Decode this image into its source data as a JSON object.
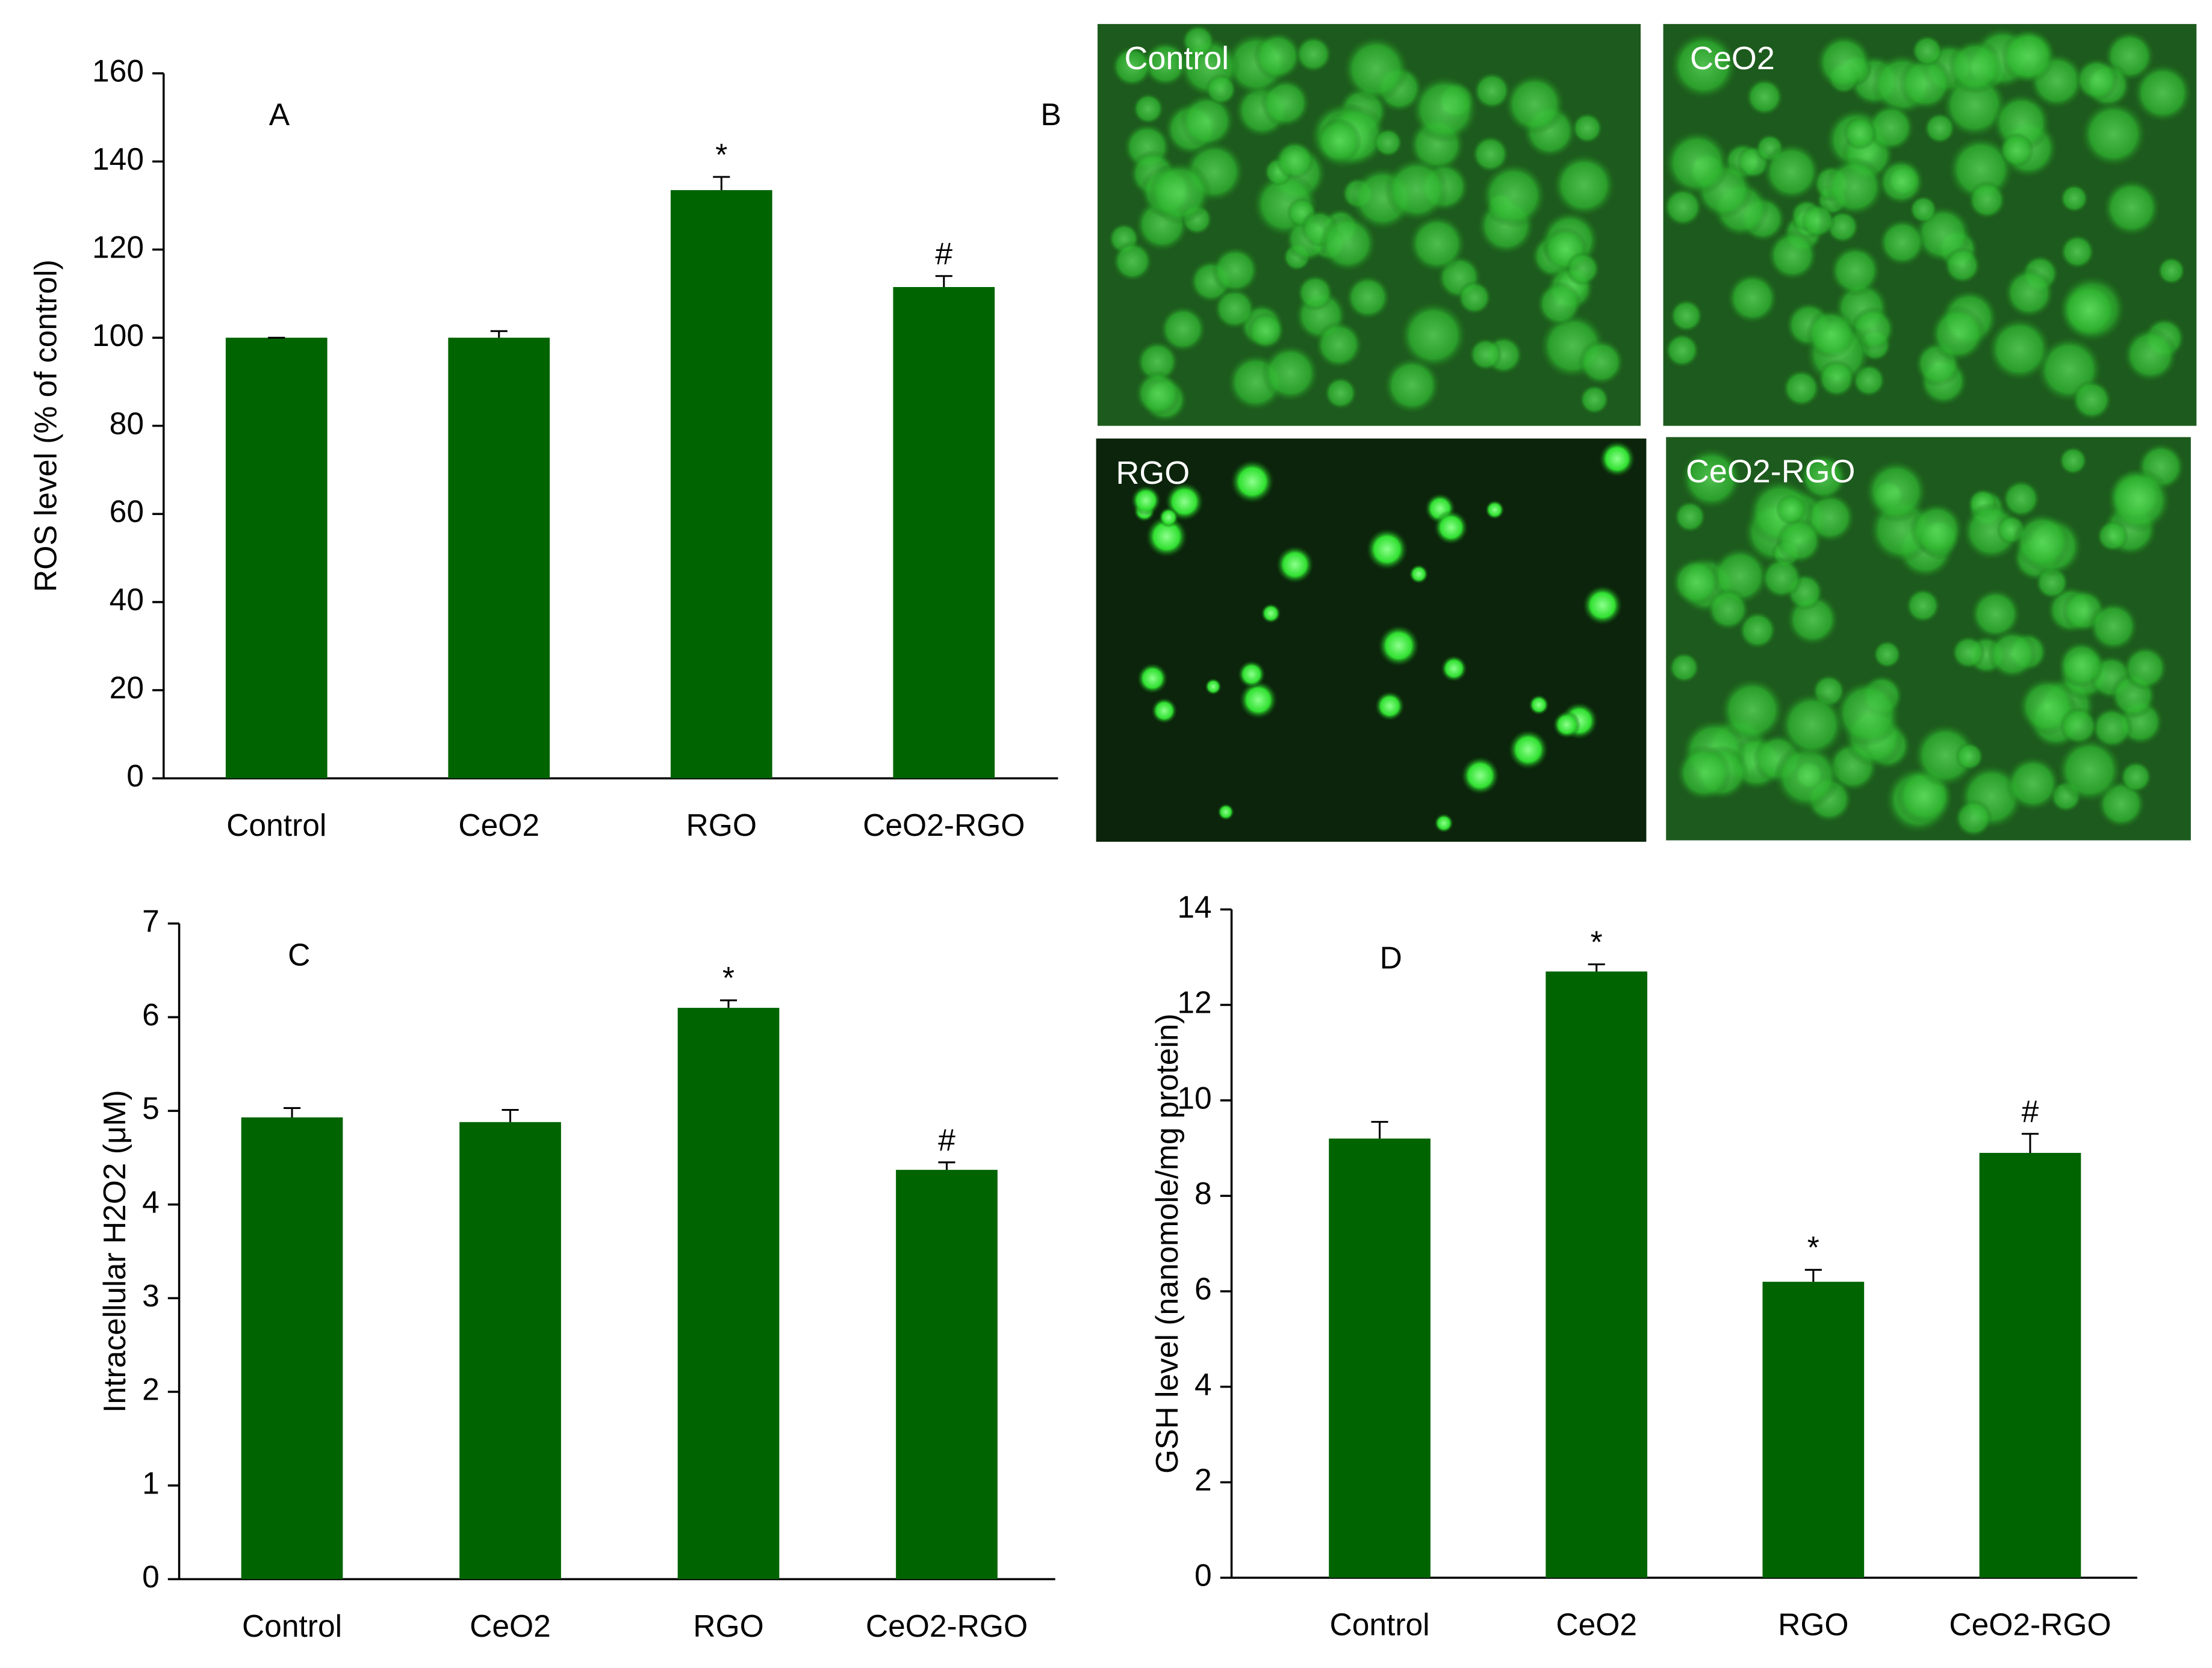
{
  "chart_data": [
    {
      "type": "bar",
      "panel": "A",
      "ylabel": "ROS level (% of control)",
      "categories": [
        "Control",
        "CeO2",
        "RGO",
        "CeO2-RGO"
      ],
      "values": [
        100,
        100,
        133.5,
        111.5
      ],
      "errors": [
        0,
        1.5,
        3,
        2.5
      ],
      "markers": [
        null,
        null,
        "*",
        "#"
      ],
      "color": "#006400",
      "ylim": [
        0,
        160
      ],
      "yticks": [
        0,
        20,
        40,
        60,
        80,
        100,
        120,
        140,
        160
      ]
    },
    {
      "type": "bar",
      "panel": "C",
      "ylabel": "Intracellular H2O2 (μM)",
      "categories": [
        "Control",
        "CeO2",
        "RGO",
        "CeO2-RGO"
      ],
      "values": [
        4.93,
        4.88,
        6.1,
        4.37
      ],
      "errors": [
        0.1,
        0.13,
        0.08,
        0.08
      ],
      "markers": [
        null,
        null,
        "*",
        "#"
      ],
      "color": "#006400",
      "ylim": [
        0,
        7
      ],
      "yticks": [
        0,
        1,
        2,
        3,
        4,
        5,
        6,
        7
      ]
    },
    {
      "type": "bar",
      "panel": "D",
      "ylabel": "GSH level (nanomole/mg protein)",
      "categories": [
        "Control",
        "CeO2",
        "RGO",
        "CeO2-RGO"
      ],
      "values": [
        9.2,
        12.7,
        6.2,
        8.9
      ],
      "errors": [
        0.35,
        0.15,
        0.25,
        0.4
      ],
      "markers": [
        null,
        "*",
        "*",
        "#"
      ],
      "color": "#006400",
      "ylim": [
        0,
        14
      ],
      "yticks": [
        0,
        2,
        4,
        6,
        8,
        10,
        12,
        14
      ]
    }
  ],
  "images": {
    "panel": "B",
    "labels": [
      "Control",
      "CeO2",
      "RGO",
      "CeO2-RGO"
    ]
  }
}
